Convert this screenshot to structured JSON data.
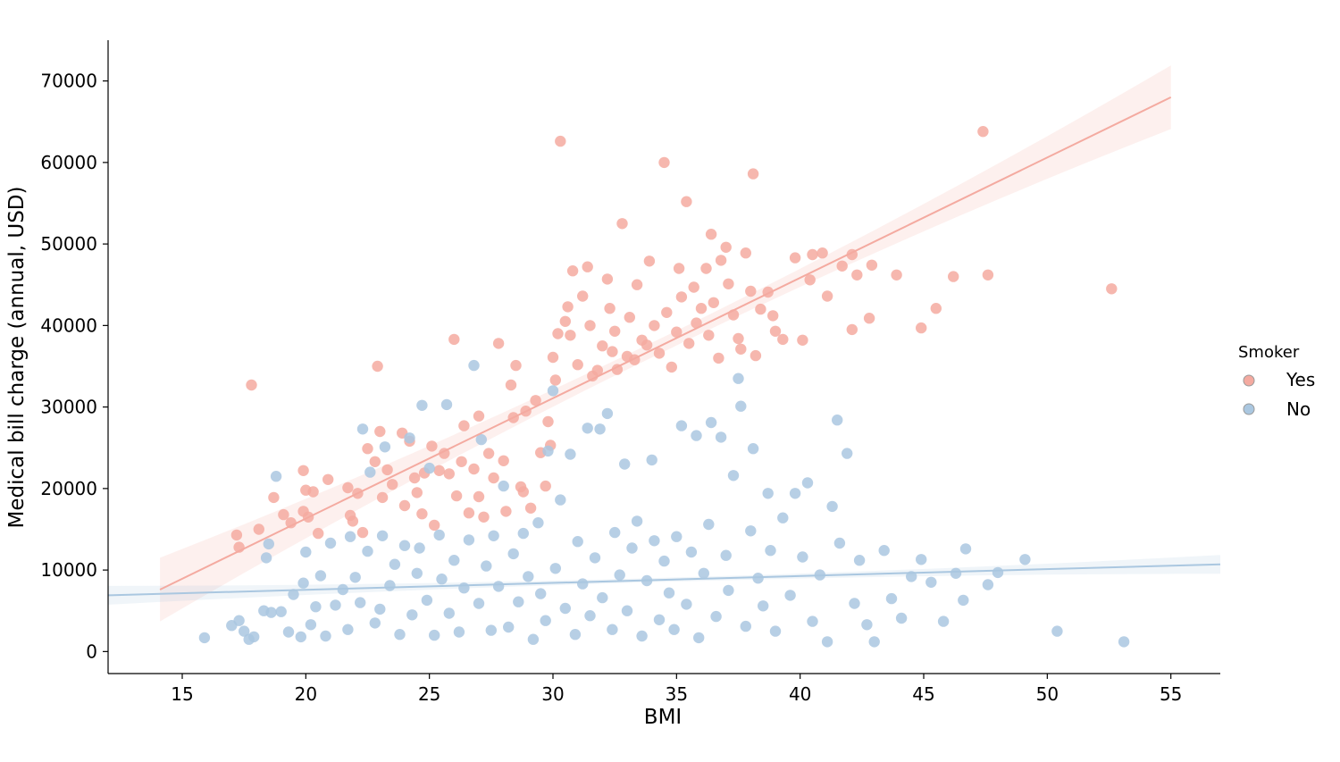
{
  "chart_data": {
    "type": "scatter",
    "xlabel": "BMI",
    "ylabel": "Medical bill charge (annual, USD)",
    "xlim": [
      12,
      57
    ],
    "ylim": [
      -2700,
      75000
    ],
    "x_ticks": [
      "15",
      "20",
      "25",
      "30",
      "35",
      "40",
      "45",
      "50",
      "55"
    ],
    "y_ticks": [
      "0",
      "10000",
      "20000",
      "30000",
      "40000",
      "50000",
      "60000",
      "70000"
    ],
    "grid": false,
    "legend": {
      "title": "Smoker",
      "placement": "center-right",
      "entries": [
        {
          "label": "Yes",
          "color": "#f4aaa0"
        },
        {
          "label": "No",
          "color": "#aac7e0"
        }
      ]
    },
    "series": [
      {
        "name": "Yes",
        "color": "#f4aaa0",
        "fit_line": {
          "x": [
            14.1,
            55.0
          ],
          "y": [
            7600,
            68000
          ]
        },
        "points": [
          [
            17.8,
            32700
          ],
          [
            17.2,
            14300
          ],
          [
            17.3,
            12800
          ],
          [
            18.1,
            15000
          ],
          [
            18.7,
            18900
          ],
          [
            19.1,
            16800
          ],
          [
            19.4,
            15800
          ],
          [
            19.9,
            17200
          ],
          [
            19.9,
            22200
          ],
          [
            20.0,
            19800
          ],
          [
            20.1,
            16500
          ],
          [
            20.3,
            19600
          ],
          [
            20.5,
            14500
          ],
          [
            20.9,
            21100
          ],
          [
            21.7,
            20100
          ],
          [
            21.8,
            16700
          ],
          [
            21.9,
            16000
          ],
          [
            22.1,
            19400
          ],
          [
            22.3,
            14600
          ],
          [
            22.5,
            24900
          ],
          [
            22.8,
            23300
          ],
          [
            22.9,
            35000
          ],
          [
            23.0,
            27000
          ],
          [
            23.1,
            18900
          ],
          [
            23.3,
            22300
          ],
          [
            23.5,
            20500
          ],
          [
            23.9,
            26800
          ],
          [
            24.0,
            17900
          ],
          [
            24.2,
            25800
          ],
          [
            24.4,
            21300
          ],
          [
            24.5,
            19500
          ],
          [
            24.7,
            16900
          ],
          [
            24.8,
            21900
          ],
          [
            25.1,
            25200
          ],
          [
            25.2,
            15500
          ],
          [
            25.4,
            22200
          ],
          [
            25.6,
            24300
          ],
          [
            25.8,
            21800
          ],
          [
            26.0,
            38300
          ],
          [
            26.1,
            19100
          ],
          [
            26.3,
            23300
          ],
          [
            26.4,
            27700
          ],
          [
            26.6,
            17000
          ],
          [
            26.8,
            22400
          ],
          [
            27.0,
            28900
          ],
          [
            27.0,
            19000
          ],
          [
            27.2,
            16500
          ],
          [
            27.4,
            24300
          ],
          [
            27.6,
            21300
          ],
          [
            27.8,
            37800
          ],
          [
            28.0,
            23400
          ],
          [
            28.1,
            17200
          ],
          [
            28.3,
            32700
          ],
          [
            28.4,
            28700
          ],
          [
            28.5,
            35100
          ],
          [
            28.7,
            20200
          ],
          [
            28.8,
            19600
          ],
          [
            28.9,
            29500
          ],
          [
            29.1,
            17600
          ],
          [
            29.3,
            30800
          ],
          [
            29.5,
            24400
          ],
          [
            29.7,
            20300
          ],
          [
            29.8,
            28200
          ],
          [
            29.9,
            25300
          ],
          [
            30.0,
            36100
          ],
          [
            30.1,
            33300
          ],
          [
            30.2,
            39000
          ],
          [
            30.3,
            62600
          ],
          [
            30.5,
            40500
          ],
          [
            30.6,
            42300
          ],
          [
            30.7,
            38800
          ],
          [
            30.8,
            46700
          ],
          [
            31.0,
            35200
          ],
          [
            31.2,
            43600
          ],
          [
            31.4,
            47200
          ],
          [
            31.5,
            40000
          ],
          [
            31.6,
            33800
          ],
          [
            31.8,
            34500
          ],
          [
            32.0,
            37500
          ],
          [
            32.2,
            45700
          ],
          [
            32.3,
            42100
          ],
          [
            32.4,
            36800
          ],
          [
            32.5,
            39300
          ],
          [
            32.6,
            34600
          ],
          [
            32.8,
            52500
          ],
          [
            33.0,
            36200
          ],
          [
            33.1,
            41000
          ],
          [
            33.3,
            35800
          ],
          [
            33.4,
            45000
          ],
          [
            33.6,
            38200
          ],
          [
            33.8,
            37600
          ],
          [
            33.9,
            47900
          ],
          [
            34.1,
            40000
          ],
          [
            34.3,
            36600
          ],
          [
            34.5,
            60000
          ],
          [
            34.6,
            41600
          ],
          [
            34.8,
            34900
          ],
          [
            35.0,
            39200
          ],
          [
            35.1,
            47000
          ],
          [
            35.2,
            43500
          ],
          [
            35.4,
            55200
          ],
          [
            35.5,
            37800
          ],
          [
            35.7,
            44700
          ],
          [
            35.8,
            40300
          ],
          [
            36.0,
            42100
          ],
          [
            36.2,
            47000
          ],
          [
            36.3,
            38800
          ],
          [
            36.4,
            51200
          ],
          [
            36.5,
            42800
          ],
          [
            36.7,
            36000
          ],
          [
            36.8,
            48000
          ],
          [
            37.0,
            49600
          ],
          [
            37.1,
            45100
          ],
          [
            37.3,
            41300
          ],
          [
            37.5,
            38400
          ],
          [
            37.6,
            37100
          ],
          [
            37.8,
            48900
          ],
          [
            38.0,
            44200
          ],
          [
            38.1,
            58600
          ],
          [
            38.2,
            36300
          ],
          [
            38.4,
            42000
          ],
          [
            38.7,
            44100
          ],
          [
            38.9,
            41200
          ],
          [
            39.0,
            39300
          ],
          [
            39.3,
            38300
          ],
          [
            39.8,
            48300
          ],
          [
            40.1,
            38200
          ],
          [
            40.4,
            45600
          ],
          [
            40.5,
            48700
          ],
          [
            40.9,
            48900
          ],
          [
            41.1,
            43600
          ],
          [
            41.7,
            47300
          ],
          [
            42.1,
            48700
          ],
          [
            42.1,
            39500
          ],
          [
            42.3,
            46200
          ],
          [
            42.8,
            40900
          ],
          [
            42.9,
            47400
          ],
          [
            43.9,
            46200
          ],
          [
            44.9,
            39700
          ],
          [
            45.5,
            42100
          ],
          [
            46.2,
            46000
          ],
          [
            47.4,
            63800
          ],
          [
            47.6,
            46200
          ],
          [
            52.6,
            44500
          ]
        ]
      },
      {
        "name": "No",
        "color": "#aac7e0",
        "fit_line": {
          "x": [
            12.0,
            57.0
          ],
          "y": [
            6900,
            10700
          ]
        },
        "points": [
          [
            15.9,
            1700
          ],
          [
            17.0,
            3200
          ],
          [
            17.3,
            3800
          ],
          [
            17.5,
            2500
          ],
          [
            17.7,
            1500
          ],
          [
            17.9,
            1800
          ],
          [
            18.3,
            5000
          ],
          [
            18.4,
            11500
          ],
          [
            18.5,
            13200
          ],
          [
            18.6,
            4800
          ],
          [
            18.8,
            21500
          ],
          [
            19.0,
            4900
          ],
          [
            19.3,
            2400
          ],
          [
            19.5,
            7000
          ],
          [
            19.8,
            1800
          ],
          [
            19.9,
            8400
          ],
          [
            20.0,
            12200
          ],
          [
            20.2,
            3300
          ],
          [
            20.4,
            5500
          ],
          [
            20.6,
            9300
          ],
          [
            20.8,
            1900
          ],
          [
            21.0,
            13300
          ],
          [
            21.2,
            5700
          ],
          [
            21.5,
            7600
          ],
          [
            21.7,
            2700
          ],
          [
            21.8,
            14100
          ],
          [
            22.0,
            9100
          ],
          [
            22.2,
            6000
          ],
          [
            22.3,
            27300
          ],
          [
            22.5,
            12300
          ],
          [
            22.6,
            22000
          ],
          [
            22.8,
            3500
          ],
          [
            23.0,
            5200
          ],
          [
            23.1,
            14200
          ],
          [
            23.2,
            25100
          ],
          [
            23.4,
            8100
          ],
          [
            23.6,
            10700
          ],
          [
            23.8,
            2100
          ],
          [
            24.0,
            13000
          ],
          [
            24.2,
            26200
          ],
          [
            24.3,
            4500
          ],
          [
            24.5,
            9600
          ],
          [
            24.6,
            12700
          ],
          [
            24.7,
            30200
          ],
          [
            24.9,
            6300
          ],
          [
            25.0,
            22500
          ],
          [
            25.2,
            2000
          ],
          [
            25.4,
            14300
          ],
          [
            25.5,
            8900
          ],
          [
            25.7,
            30300
          ],
          [
            25.8,
            4700
          ],
          [
            26.0,
            11200
          ],
          [
            26.2,
            2400
          ],
          [
            26.4,
            7800
          ],
          [
            26.6,
            13700
          ],
          [
            26.8,
            35100
          ],
          [
            27.0,
            5900
          ],
          [
            27.1,
            26000
          ],
          [
            27.3,
            10500
          ],
          [
            27.5,
            2600
          ],
          [
            27.6,
            14200
          ],
          [
            27.8,
            8000
          ],
          [
            28.0,
            20300
          ],
          [
            28.2,
            3000
          ],
          [
            28.4,
            12000
          ],
          [
            28.6,
            6100
          ],
          [
            28.8,
            14500
          ],
          [
            29.0,
            9200
          ],
          [
            29.2,
            1500
          ],
          [
            29.4,
            15800
          ],
          [
            29.5,
            7100
          ],
          [
            29.7,
            3800
          ],
          [
            29.8,
            24600
          ],
          [
            30.0,
            32000
          ],
          [
            30.1,
            10200
          ],
          [
            30.3,
            18600
          ],
          [
            30.5,
            5300
          ],
          [
            30.7,
            24200
          ],
          [
            30.9,
            2100
          ],
          [
            31.0,
            13500
          ],
          [
            31.2,
            8300
          ],
          [
            31.4,
            27400
          ],
          [
            31.5,
            4400
          ],
          [
            31.7,
            11500
          ],
          [
            31.9,
            27300
          ],
          [
            32.0,
            6600
          ],
          [
            32.2,
            29200
          ],
          [
            32.4,
            2700
          ],
          [
            32.5,
            14600
          ],
          [
            32.7,
            9400
          ],
          [
            32.9,
            23000
          ],
          [
            33.0,
            5000
          ],
          [
            33.2,
            12700
          ],
          [
            33.4,
            16000
          ],
          [
            33.6,
            1900
          ],
          [
            33.8,
            8700
          ],
          [
            34.0,
            23500
          ],
          [
            34.1,
            13600
          ],
          [
            34.3,
            3900
          ],
          [
            34.5,
            11100
          ],
          [
            34.7,
            7200
          ],
          [
            34.9,
            2700
          ],
          [
            35.0,
            14100
          ],
          [
            35.2,
            27700
          ],
          [
            35.4,
            5800
          ],
          [
            35.6,
            12200
          ],
          [
            35.8,
            26500
          ],
          [
            35.9,
            1700
          ],
          [
            36.1,
            9600
          ],
          [
            36.3,
            15600
          ],
          [
            36.4,
            28100
          ],
          [
            36.6,
            4300
          ],
          [
            36.8,
            26300
          ],
          [
            37.0,
            11800
          ],
          [
            37.1,
            7500
          ],
          [
            37.3,
            21600
          ],
          [
            37.5,
            33500
          ],
          [
            37.6,
            30100
          ],
          [
            37.8,
            3100
          ],
          [
            38.0,
            14800
          ],
          [
            38.1,
            24900
          ],
          [
            38.3,
            9000
          ],
          [
            38.5,
            5600
          ],
          [
            38.7,
            19400
          ],
          [
            38.8,
            12400
          ],
          [
            39.0,
            2500
          ],
          [
            39.3,
            16400
          ],
          [
            39.6,
            6900
          ],
          [
            39.8,
            19400
          ],
          [
            40.1,
            11600
          ],
          [
            40.3,
            20700
          ],
          [
            40.5,
            3700
          ],
          [
            40.8,
            9400
          ],
          [
            41.1,
            1200
          ],
          [
            41.3,
            17800
          ],
          [
            41.5,
            28400
          ],
          [
            41.6,
            13300
          ],
          [
            41.9,
            24300
          ],
          [
            42.2,
            5900
          ],
          [
            42.4,
            11200
          ],
          [
            42.7,
            3300
          ],
          [
            43.0,
            1200
          ],
          [
            43.4,
            12400
          ],
          [
            43.7,
            6500
          ],
          [
            44.1,
            4100
          ],
          [
            44.5,
            9200
          ],
          [
            44.9,
            11300
          ],
          [
            45.3,
            8500
          ],
          [
            45.8,
            3700
          ],
          [
            46.3,
            9600
          ],
          [
            46.6,
            6300
          ],
          [
            46.7,
            12600
          ],
          [
            47.6,
            8200
          ],
          [
            48.0,
            9700
          ],
          [
            49.1,
            11300
          ],
          [
            50.4,
            2500
          ],
          [
            53.1,
            1200
          ]
        ]
      }
    ]
  }
}
